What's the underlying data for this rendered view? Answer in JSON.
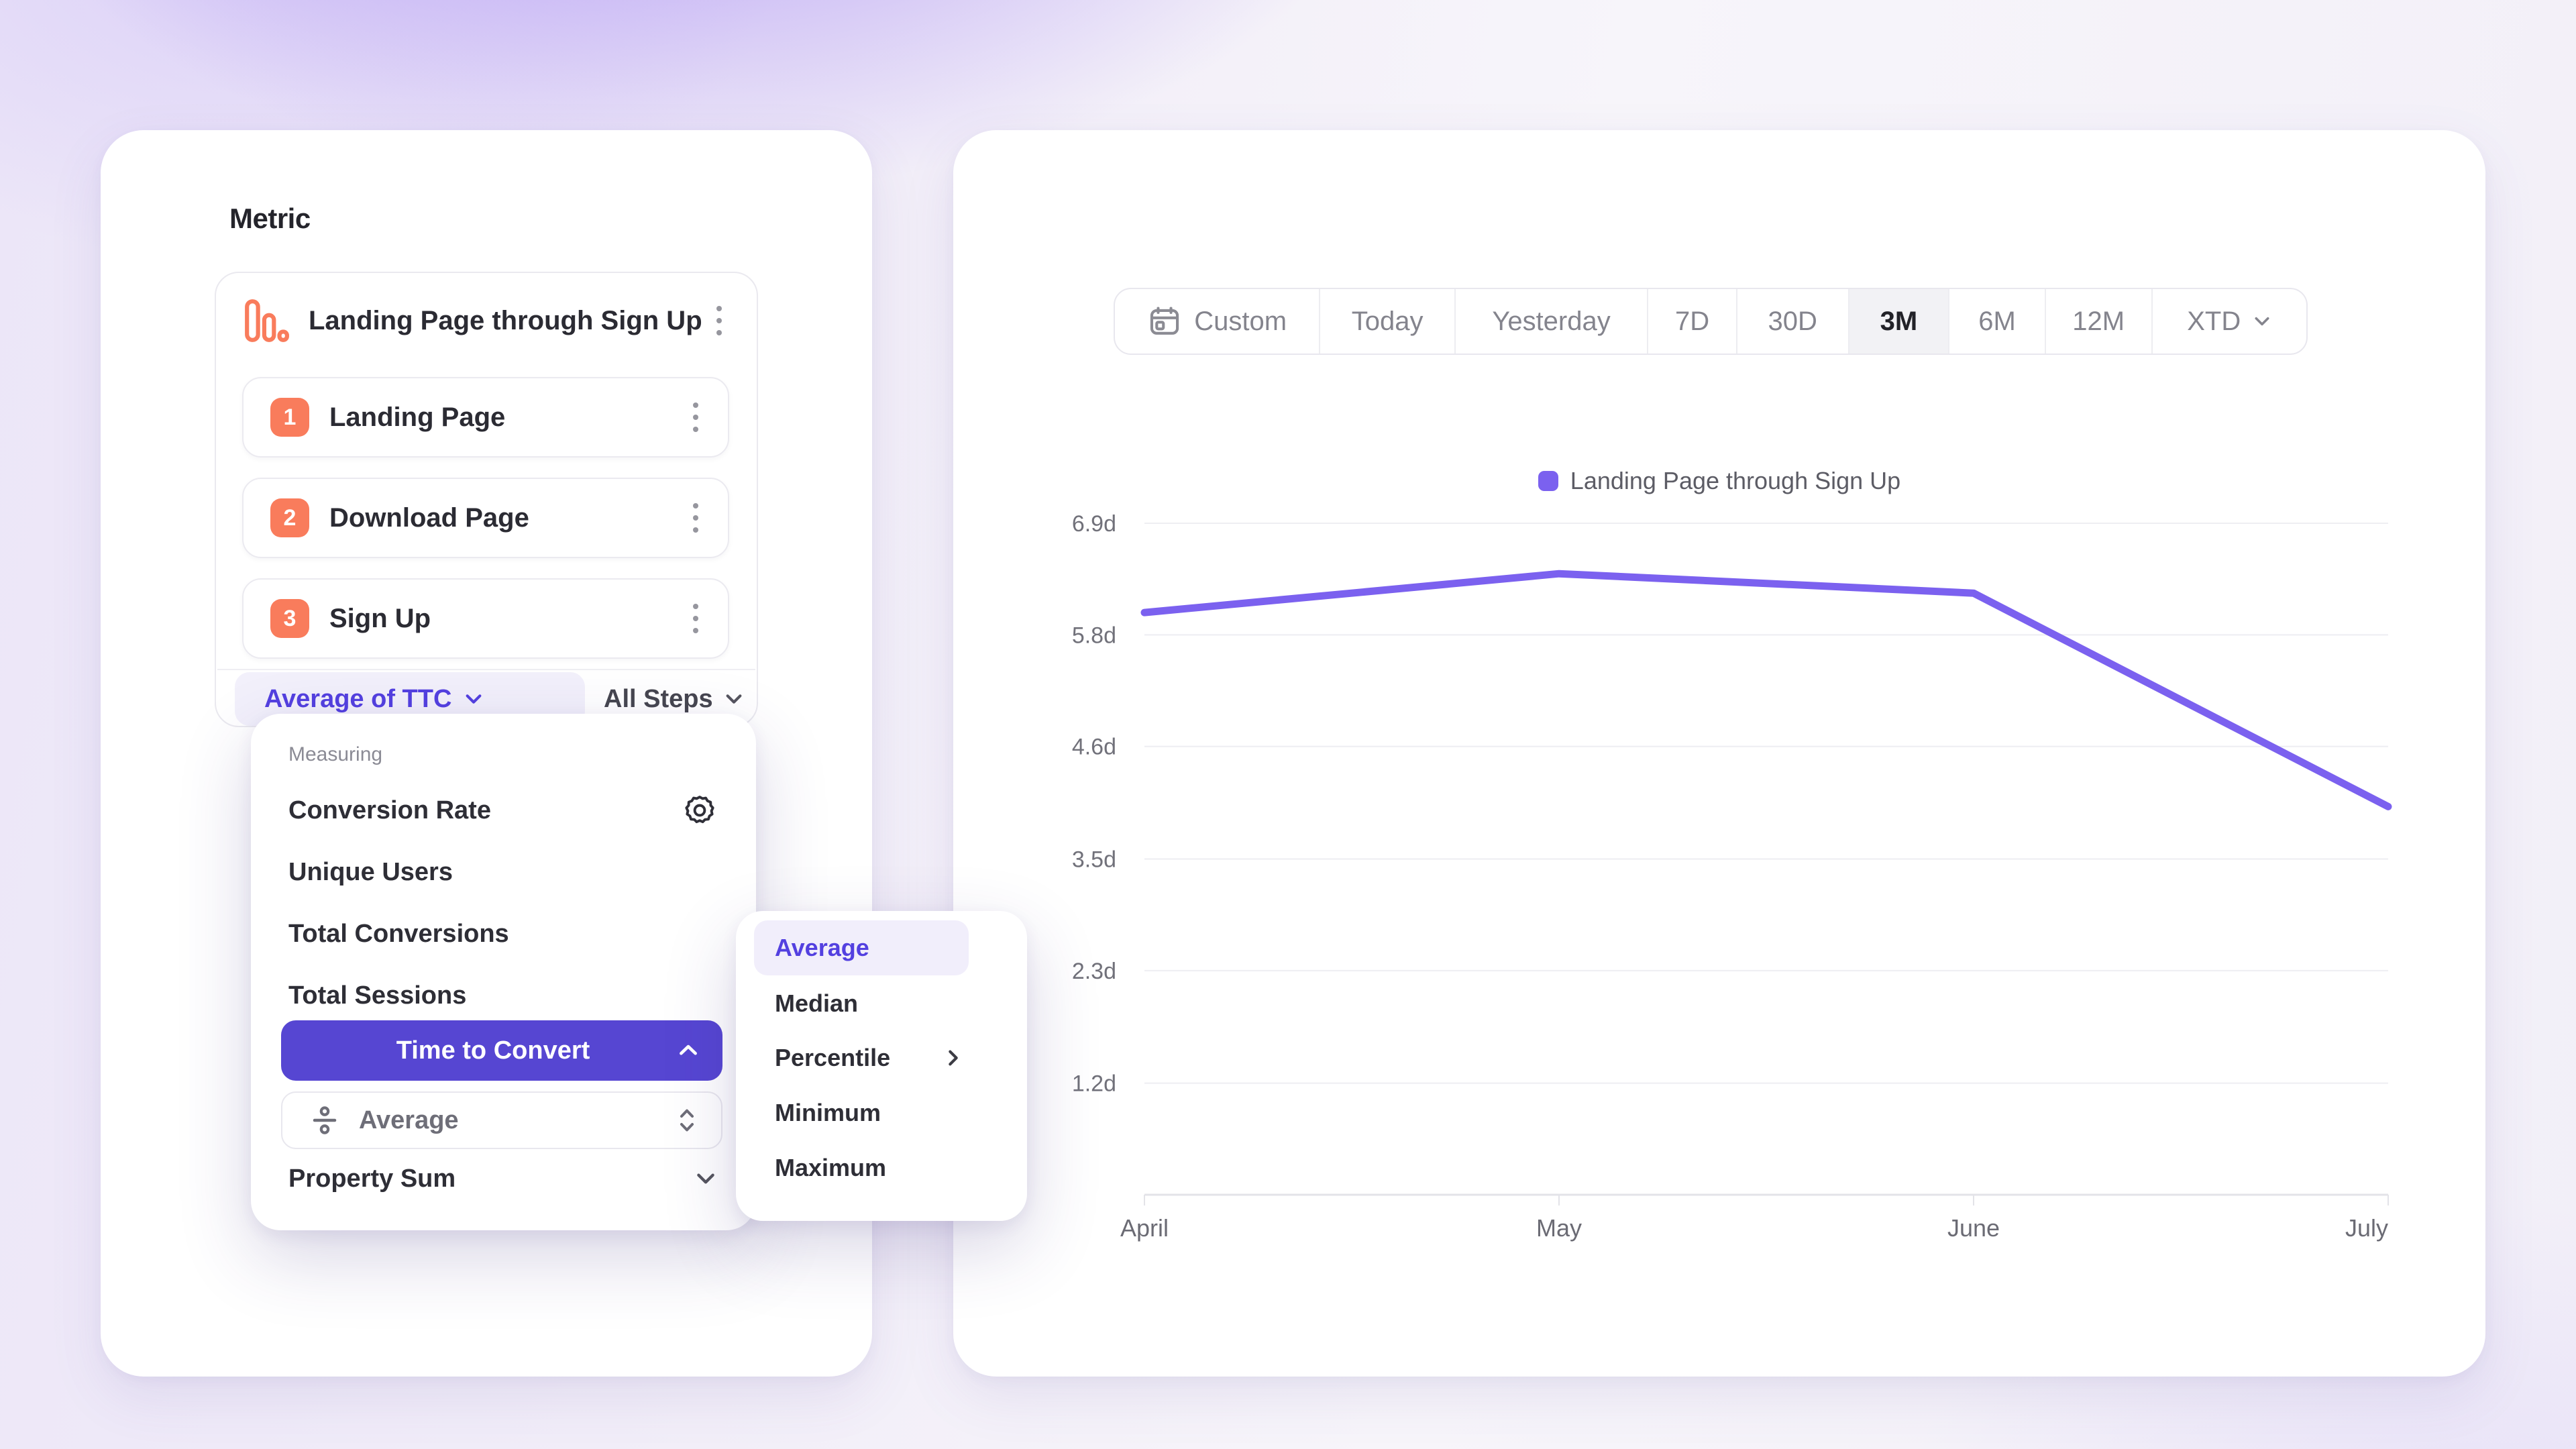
{
  "colors": {
    "accent_text": "#5340e0",
    "selected_item_bg": "#5646d2",
    "line": "#7b61ef",
    "coral": "#f97c5c",
    "pill_bg": "#f2f0fb"
  },
  "metric_panel": {
    "title": "Metric",
    "funnel": {
      "title": "Landing Page through Sign Up",
      "steps": [
        {
          "num": "1",
          "label": "Landing Page"
        },
        {
          "num": "2",
          "label": "Download Page"
        },
        {
          "num": "3",
          "label": "Sign Up"
        }
      ],
      "measurement_label": "Average of TTC",
      "steps_scope_label": "All Steps"
    }
  },
  "measuring_menu": {
    "section_label": "Measuring",
    "items": [
      {
        "label": "Conversion Rate",
        "icon": "gear-icon"
      },
      {
        "label": "Unique Users"
      },
      {
        "label": "Total Conversions"
      },
      {
        "label": "Total Sessions"
      },
      {
        "label": "Time to Convert",
        "selected": true,
        "icon": "chevron-up-icon"
      },
      {
        "label": "Property Sum",
        "icon": "chevron-down-icon"
      }
    ],
    "ttc_aggregation": {
      "label": "Average",
      "icon": "divide-icon"
    }
  },
  "aggregation_submenu": {
    "items": [
      {
        "label": "Average",
        "selected": true
      },
      {
        "label": "Median"
      },
      {
        "label": "Percentile",
        "has_submenu": true
      },
      {
        "label": "Minimum"
      },
      {
        "label": "Maximum"
      }
    ]
  },
  "date_range_bar": {
    "options": [
      {
        "label": "Custom",
        "icon": "calendar-icon"
      },
      {
        "label": "Today"
      },
      {
        "label": "Yesterday"
      },
      {
        "label": "7D"
      },
      {
        "label": "30D"
      },
      {
        "label": "3M",
        "selected": true
      },
      {
        "label": "6M"
      },
      {
        "label": "12M"
      },
      {
        "label": "XTD",
        "icon": "chevron-down-icon"
      }
    ]
  },
  "chart_data": {
    "type": "line",
    "legend": [
      {
        "label": "Landing Page through Sign Up",
        "color": "#7b61ef"
      }
    ],
    "categories": [
      "April",
      "May",
      "June",
      "July"
    ],
    "series": [
      {
        "name": "Landing Page through Sign Up",
        "values": [
          6.0,
          6.4,
          6.2,
          4.0
        ]
      }
    ],
    "y_ticks": [
      {
        "label": "6.9d",
        "value": 6.92
      },
      {
        "label": "5.8d",
        "value": 5.77
      },
      {
        "label": "4.6d",
        "value": 4.62
      },
      {
        "label": "3.5d",
        "value": 3.46
      },
      {
        "label": "2.3d",
        "value": 2.31
      },
      {
        "label": "1.2d",
        "value": 1.15
      }
    ],
    "ylim": [
      0,
      6.92
    ],
    "unit": "days",
    "grid": "horizontal",
    "legend_position": "top-center"
  }
}
